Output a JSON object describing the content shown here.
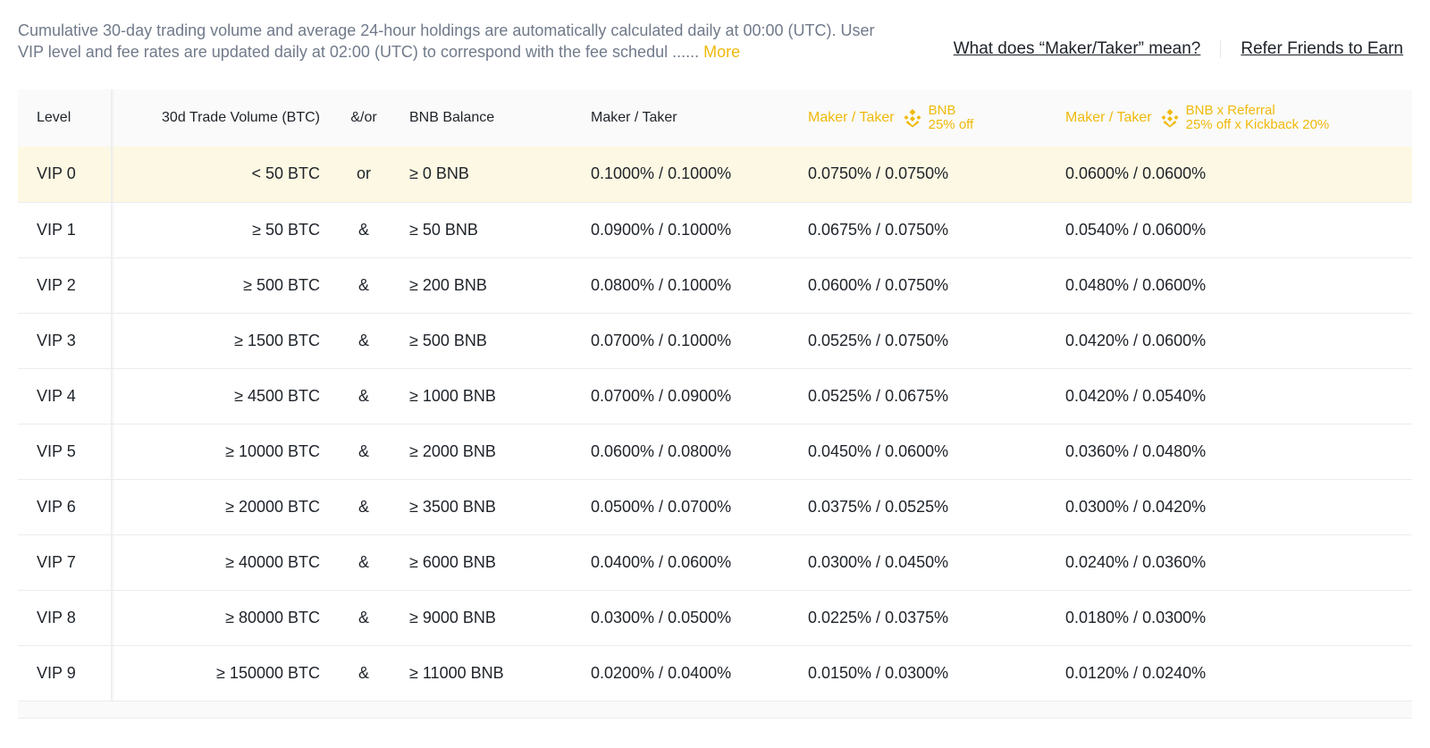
{
  "notice": {
    "text": "Cumulative 30-day trading volume and average 24-hour holdings are automatically calculated daily at 00:00 (UTC). User VIP level and fee rates are updated daily at 02:00 (UTC) to correspond with the fee schedul ...... ",
    "more_label": "More"
  },
  "links": {
    "maker_taker": "What does “Maker/Taker” mean?",
    "refer": "Refer Friends to Earn"
  },
  "table": {
    "headers": {
      "level": "Level",
      "volume": "30d Trade Volume (BTC)",
      "andor": "&/or",
      "bnb_balance": "BNB Balance",
      "maker_taker": "Maker / Taker",
      "maker_taker_bnb": "Maker / Taker",
      "bnb_line1": "BNB",
      "bnb_line2": "25% off",
      "maker_taker_ref": "Maker / Taker",
      "ref_line1": "BNB x Referral",
      "ref_line2": "25% off x Kickback 20%"
    },
    "rows": [
      {
        "level": "VIP 0",
        "volume": "< 50 BTC",
        "andor": "or",
        "bnb": "≥ 0 BNB",
        "mt": "0.1000% / 0.1000%",
        "mt_bnb": "0.0750% / 0.0750%",
        "mt_ref": "0.0600% / 0.0600%"
      },
      {
        "level": "VIP 1",
        "volume": "≥ 50 BTC",
        "andor": "&",
        "bnb": "≥ 50 BNB",
        "mt": "0.0900% / 0.1000%",
        "mt_bnb": "0.0675% / 0.0750%",
        "mt_ref": "0.0540% / 0.0600%"
      },
      {
        "level": "VIP 2",
        "volume": "≥ 500 BTC",
        "andor": "&",
        "bnb": "≥ 200 BNB",
        "mt": "0.0800% / 0.1000%",
        "mt_bnb": "0.0600% / 0.0750%",
        "mt_ref": "0.0480% / 0.0600%"
      },
      {
        "level": "VIP 3",
        "volume": "≥ 1500 BTC",
        "andor": "&",
        "bnb": "≥ 500 BNB",
        "mt": "0.0700% / 0.1000%",
        "mt_bnb": "0.0525% / 0.0750%",
        "mt_ref": "0.0420% / 0.0600%"
      },
      {
        "level": "VIP 4",
        "volume": "≥ 4500 BTC",
        "andor": "&",
        "bnb": "≥ 1000 BNB",
        "mt": "0.0700% / 0.0900%",
        "mt_bnb": "0.0525% / 0.0675%",
        "mt_ref": "0.0420% / 0.0540%"
      },
      {
        "level": "VIP 5",
        "volume": "≥ 10000 BTC",
        "andor": "&",
        "bnb": "≥ 2000 BNB",
        "mt": "0.0600% / 0.0800%",
        "mt_bnb": "0.0450% / 0.0600%",
        "mt_ref": "0.0360% / 0.0480%"
      },
      {
        "level": "VIP 6",
        "volume": "≥ 20000 BTC",
        "andor": "&",
        "bnb": "≥ 3500 BNB",
        "mt": "0.0500% / 0.0700%",
        "mt_bnb": "0.0375% / 0.0525%",
        "mt_ref": "0.0300% / 0.0420%"
      },
      {
        "level": "VIP 7",
        "volume": "≥ 40000 BTC",
        "andor": "&",
        "bnb": "≥ 6000 BNB",
        "mt": "0.0400% / 0.0600%",
        "mt_bnb": "0.0300% / 0.0450%",
        "mt_ref": "0.0240% / 0.0360%"
      },
      {
        "level": "VIP 8",
        "volume": "≥ 80000 BTC",
        "andor": "&",
        "bnb": "≥ 9000 BNB",
        "mt": "0.0300% / 0.0500%",
        "mt_bnb": "0.0225% / 0.0375%",
        "mt_ref": "0.0180% / 0.0300%"
      },
      {
        "level": "VIP 9",
        "volume": "≥ 150000 BTC",
        "andor": "&",
        "bnb": "≥ 11000 BNB",
        "mt": "0.0200% / 0.0400%",
        "mt_bnb": "0.0150% / 0.0300%",
        "mt_ref": "0.0120% / 0.0240%"
      }
    ]
  },
  "colors": {
    "accent": "#f0b90b",
    "highlight_row": "#fdf8e3",
    "header_bg": "#fafafa",
    "muted_text": "#707a8a"
  },
  "icons": {
    "bnb": "bnb-logo-icon"
  }
}
